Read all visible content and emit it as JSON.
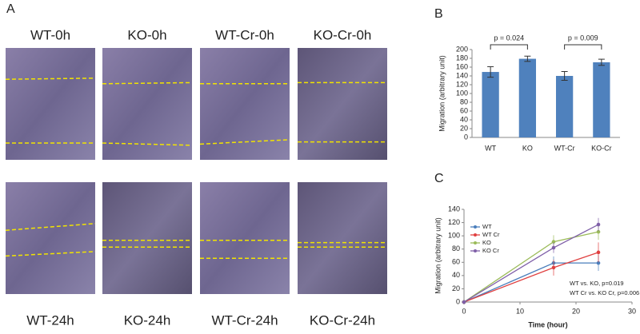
{
  "panel_a": {
    "label": "A",
    "images": [
      {
        "label": "WT-0h"
      },
      {
        "label": "KO-0h"
      },
      {
        "label": "WT-Cr-0h"
      },
      {
        "label": "KO-Cr-0h"
      },
      {
        "label": "WT-24h"
      },
      {
        "label": "KO-24h"
      },
      {
        "label": "WT-Cr-24h"
      },
      {
        "label": "KO-Cr-24h"
      }
    ]
  },
  "chart_data": [
    {
      "type": "bar",
      "panel_label": "B",
      "ylabel": "Migration (arbitrary unit)",
      "categories": [
        "WT",
        "KO",
        "WT-Cr",
        "KO-Cr"
      ],
      "values": [
        149,
        179,
        140,
        171
      ],
      "errors": [
        12,
        6,
        10,
        7
      ],
      "color": "#4f81bd",
      "ylim": [
        0,
        200
      ],
      "yticks": [
        0,
        20,
        40,
        60,
        80,
        100,
        120,
        140,
        160,
        180,
        200
      ],
      "annotations": [
        "p = 0.024",
        "p = 0.009"
      ]
    },
    {
      "type": "line",
      "panel_label": "C",
      "xlabel": "Time (hour)",
      "ylabel": "Migration (arbitrary unit)",
      "x": [
        0,
        16,
        24
      ],
      "series": [
        {
          "name": "WT",
          "color": "#4a7ebb",
          "values": [
            0,
            59,
            59
          ],
          "errors": [
            0,
            10,
            12
          ]
        },
        {
          "name": "WT Cr",
          "color": "#e04040",
          "values": [
            0,
            52,
            75
          ],
          "errors": [
            0,
            12,
            15
          ]
        },
        {
          "name": "KO",
          "color": "#9bbb59",
          "values": [
            0,
            91,
            106
          ],
          "errors": [
            0,
            10,
            12
          ]
        },
        {
          "name": "KO Cr",
          "color": "#7f5fa8",
          "values": [
            0,
            82,
            117
          ],
          "errors": [
            0,
            8,
            10
          ]
        }
      ],
      "xlim": [
        0,
        30
      ],
      "xticks": [
        0,
        10,
        20,
        30
      ],
      "ylim": [
        0,
        140
      ],
      "yticks": [
        0,
        20,
        40,
        60,
        80,
        100,
        120,
        140
      ],
      "legend": "upper-left",
      "annotations": [
        "WT vs. KO, p=0.019",
        "WT Cr vs. KO Cr, p=0.006"
      ]
    }
  ]
}
